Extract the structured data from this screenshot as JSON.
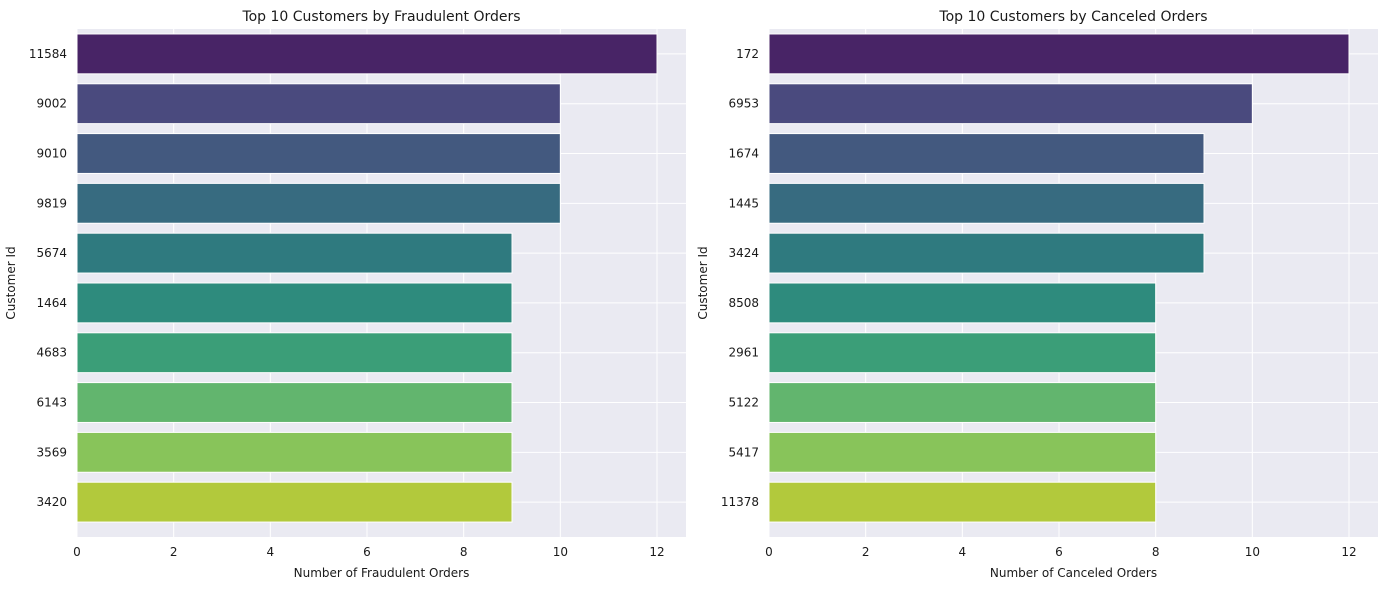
{
  "chart_data": [
    {
      "type": "bar",
      "orientation": "horizontal",
      "title": "Top 10 Customers by Fraudulent Orders",
      "xlabel": "Number of Fraudulent Orders",
      "ylabel": "Customer Id",
      "categories": [
        "11584",
        "9002",
        "9010",
        "9819",
        "5674",
        "1464",
        "4683",
        "6143",
        "3569",
        "3420"
      ],
      "values": [
        12,
        10,
        10,
        10,
        9,
        9,
        9,
        9,
        9,
        9
      ],
      "xlim": [
        0,
        12.6
      ],
      "xticks": [
        "0",
        "2",
        "4",
        "6",
        "8",
        "10",
        "12"
      ],
      "grid": true
    },
    {
      "type": "bar",
      "orientation": "horizontal",
      "title": "Top 10 Customers by Canceled Orders",
      "xlabel": "Number of Canceled Orders",
      "ylabel": "Customer Id",
      "categories": [
        "172",
        "6953",
        "1674",
        "1445",
        "3424",
        "8508",
        "2961",
        "5122",
        "5417",
        "11378"
      ],
      "values": [
        12,
        10,
        9,
        9,
        9,
        8,
        8,
        8,
        8,
        8
      ],
      "xlim": [
        0,
        12.6
      ],
      "xticks": [
        "0",
        "2",
        "4",
        "6",
        "8",
        "10",
        "12"
      ],
      "grid": true
    }
  ],
  "colors": {
    "plot_background": "#eaeaf2",
    "grid": "#ffffff",
    "palette": [
      "#482466",
      "#4a4a7e",
      "#43597f",
      "#376b80",
      "#2f7a7f",
      "#2e8b7d",
      "#3b9e78",
      "#62b56e",
      "#88c45a",
      "#b2c93c"
    ]
  }
}
